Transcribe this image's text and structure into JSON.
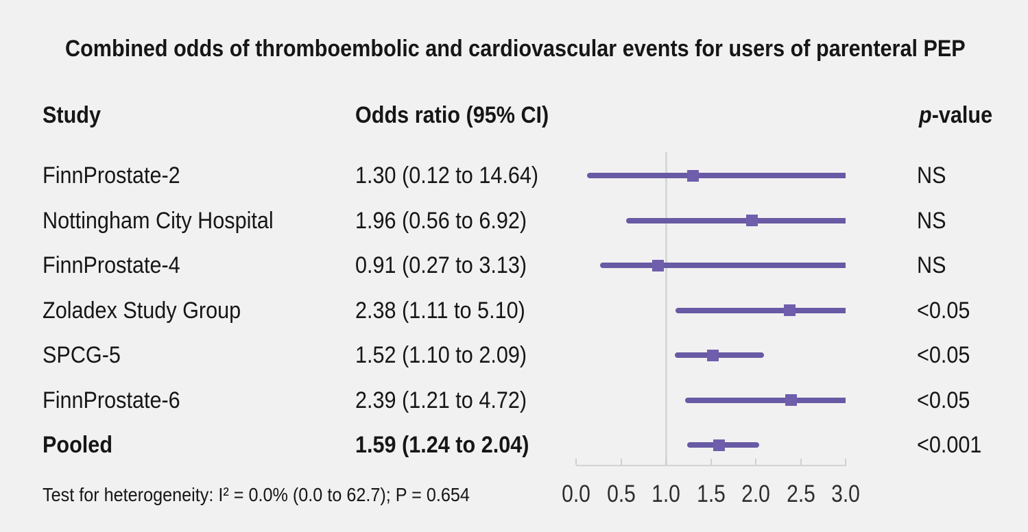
{
  "title": "Combined odds of thromboembolic and cardiovascular events for users of parenteral PEP",
  "columns": {
    "study": "Study",
    "odds_ratio": "Odds ratio (95% CI)",
    "p_italic": "p",
    "p_rest": "-value"
  },
  "footnote": "Test for heterogeneity: I² = 0.0% (0.0 to 62.7); P = 0.654",
  "colors": {
    "background": "#f2f1f1",
    "ci_bar": "#685aa4",
    "marker": "#6f5eab",
    "reference_line": "#d5d8dc",
    "axis": "#d2d3d6",
    "text": "#161616"
  },
  "chart_data": {
    "type": "forest",
    "title": "Combined odds of thromboembolic and cardiovascular events for users of parenteral PEP",
    "x_axis": {
      "range": [
        0,
        3
      ],
      "ticks": [
        0,
        0.5,
        1,
        1.5,
        2,
        2.5,
        3
      ],
      "tick_labels": [
        "0.0",
        "0.5",
        "1.0",
        "1.5",
        "2.0",
        "2.5",
        "3.0"
      ],
      "reference_line": 1.0
    },
    "legend": "none",
    "rows": [
      {
        "study": "FinnProstate-2",
        "odds_ratio": 1.3,
        "ci_low": 0.12,
        "ci_high": 14.64,
        "or_label": "1.30 (0.12 to 14.64)",
        "p_value": "NS",
        "emphasis": false
      },
      {
        "study": "Nottingham City Hospital",
        "odds_ratio": 1.96,
        "ci_low": 0.56,
        "ci_high": 6.92,
        "or_label": "1.96 (0.56 to 6.92)",
        "p_value": "NS",
        "emphasis": false
      },
      {
        "study": "FinnProstate-4",
        "odds_ratio": 0.91,
        "ci_low": 0.27,
        "ci_high": 3.13,
        "or_label": "0.91 (0.27 to 3.13)",
        "p_value": "NS",
        "emphasis": false
      },
      {
        "study": "Zoladex Study Group",
        "odds_ratio": 2.38,
        "ci_low": 1.11,
        "ci_high": 5.1,
        "or_label": "2.38 (1.11 to 5.10)",
        "p_value": "<0.05",
        "emphasis": false
      },
      {
        "study": "SPCG-5",
        "odds_ratio": 1.52,
        "ci_low": 1.1,
        "ci_high": 2.09,
        "or_label": "1.52 (1.10 to 2.09)",
        "p_value": "<0.05",
        "emphasis": false
      },
      {
        "study": "FinnProstate-6",
        "odds_ratio": 2.39,
        "ci_low": 1.21,
        "ci_high": 4.72,
        "or_label": "2.39 (1.21 to 4.72)",
        "p_value": "<0.05",
        "emphasis": false
      },
      {
        "study": "Pooled",
        "odds_ratio": 1.59,
        "ci_low": 1.24,
        "ci_high": 2.04,
        "or_label": "1.59 (1.24 to 2.04)",
        "p_value": "<0.001",
        "emphasis": true
      }
    ]
  }
}
